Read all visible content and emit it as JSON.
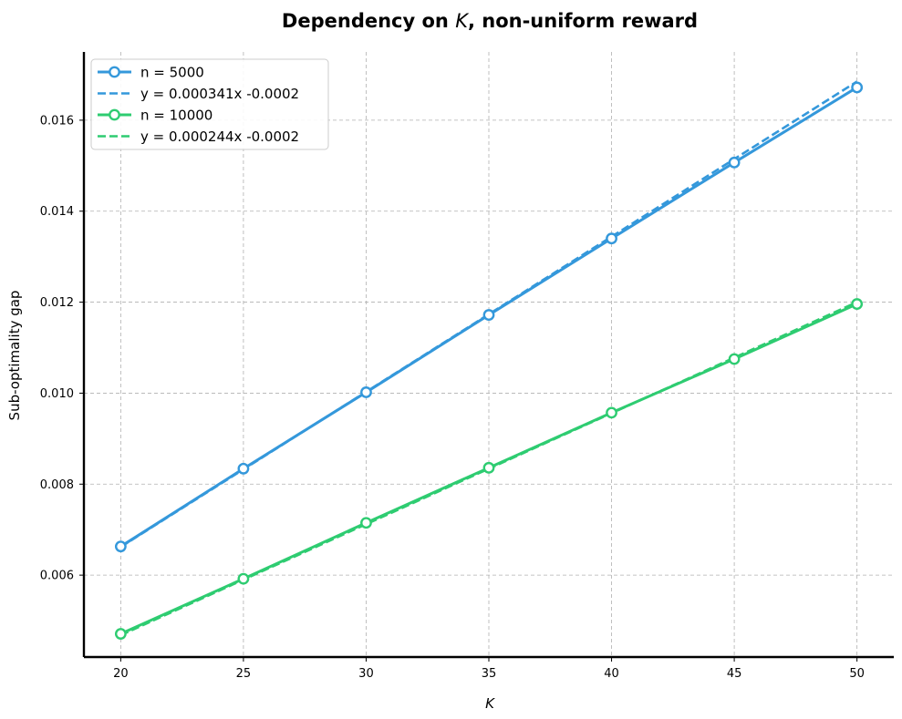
{
  "chart_data": {
    "type": "line",
    "title_prefix": "Dependency on ",
    "title_var": "K",
    "title_suffix": ", non-uniform reward",
    "xlabel": "K",
    "ylabel": "Sub-optimality gap",
    "xlim": [
      18.5,
      51.5
    ],
    "ylim": [
      0.0042,
      0.0175
    ],
    "xticks": [
      20,
      25,
      30,
      35,
      40,
      45,
      50
    ],
    "yticks": [
      0.006,
      0.008,
      0.01,
      0.012,
      0.014,
      0.016
    ],
    "ytick_labels": [
      "0.006",
      "0.008",
      "0.010",
      "0.012",
      "0.014",
      "0.016"
    ],
    "grid": true,
    "legend_position": "top-left",
    "x": [
      20,
      25,
      30,
      35,
      40,
      45,
      50
    ],
    "series": [
      {
        "name": "n = 5000",
        "color": "#3498db",
        "values": [
          0.00663,
          0.00834,
          0.01002,
          0.01172,
          0.0134,
          0.01507,
          0.01672
        ]
      },
      {
        "name": "n = 10000",
        "color": "#2ecc71",
        "values": [
          0.00471,
          0.00592,
          0.00715,
          0.00836,
          0.00957,
          0.01075,
          0.01196
        ]
      }
    ],
    "fits": [
      {
        "name": "y = 0.000341x  -0.0002",
        "color": "#3498db",
        "slope": 0.000341,
        "intercept": -0.0002
      },
      {
        "name": "y = 0.000244x  -0.0002",
        "color": "#2ecc71",
        "slope": 0.000244,
        "intercept": -0.0002
      }
    ]
  }
}
